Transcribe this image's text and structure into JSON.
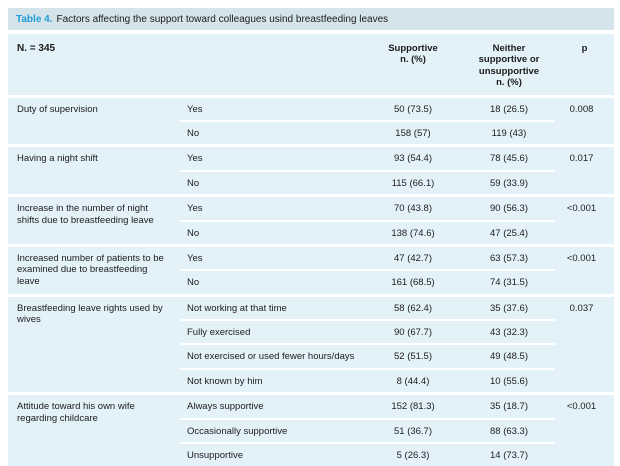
{
  "title": {
    "label": "Table 4.",
    "text": "Factors affecting the support toward colleagues usind breastfeeding leaves"
  },
  "colors": {
    "accent_blue": "#1f9cd8",
    "title_bar_bg": "#d5e3ea",
    "table_bg": "#e3f1f9",
    "separator": "#ffffff",
    "text": "#1c1c1c"
  },
  "table": {
    "n_label": "N. = 345",
    "columns": {
      "supportive": "Supportive\nn. (%)",
      "neither": "Neither\nsupportive or\nunsupportive\nn. (%)",
      "p": "p"
    },
    "sections": [
      {
        "factor": "Duty of supervision",
        "rows": [
          {
            "choice": "Yes",
            "supportive": "50 (73.5)",
            "neither": "18 (26.5)",
            "p": "0.008"
          },
          {
            "choice": "No",
            "supportive": "158 (57)",
            "neither": "119 (43)",
            "p": ""
          }
        ]
      },
      {
        "factor": "Having a night shift",
        "rows": [
          {
            "choice": "Yes",
            "supportive": "93 (54.4)",
            "neither": "78 (45.6)",
            "p": "0.017"
          },
          {
            "choice": "No",
            "supportive": "115 (66.1)",
            "neither": "59 (33.9)",
            "p": ""
          }
        ]
      },
      {
        "factor": "Increase in the number of night shifts due to breastfeeding leave",
        "rows": [
          {
            "choice": "Yes",
            "supportive": "70 (43.8)",
            "neither": "90 (56.3)",
            "p": "<0.001"
          },
          {
            "choice": "No",
            "supportive": "138 (74.6)",
            "neither": "47 (25.4)",
            "p": ""
          }
        ]
      },
      {
        "factor": "Increased number of patients to be examined due to breastfeeding leave",
        "rows": [
          {
            "choice": "Yes",
            "supportive": "47 (42.7)",
            "neither": "63 (57.3)",
            "p": "<0.001"
          },
          {
            "choice": "No",
            "supportive": "161 (68.5)",
            "neither": "74 (31.5)",
            "p": ""
          }
        ]
      },
      {
        "factor": "Breastfeeding leave rights used by wives",
        "rows": [
          {
            "choice": "Not working at that time",
            "supportive": "58 (62.4)",
            "neither": "35 (37.6)",
            "p": "0.037"
          },
          {
            "choice": "Fully exercised",
            "supportive": "90 (67.7)",
            "neither": "43 (32.3)",
            "p": ""
          },
          {
            "choice": "Not exercised or used fewer hours/days",
            "supportive": "52 (51.5)",
            "neither": "49 (48.5)",
            "p": ""
          },
          {
            "choice": "Not known by him",
            "supportive": "8 (44.4)",
            "neither": "10 (55.6)",
            "p": ""
          }
        ]
      },
      {
        "factor": "Attitude toward his own wife regarding childcare",
        "rows": [
          {
            "choice": "Always supportive",
            "supportive": "152 (81.3)",
            "neither": "35 (18.7)",
            "p": "<0.001"
          },
          {
            "choice": "Occasionally supportive",
            "supportive": "51 (36.7)",
            "neither": "88 (63.3)",
            "p": ""
          },
          {
            "choice": "Unsupportive",
            "supportive": "5 (26.3)",
            "neither": "14 (73.7)",
            "p": ""
          }
        ]
      }
    ]
  }
}
